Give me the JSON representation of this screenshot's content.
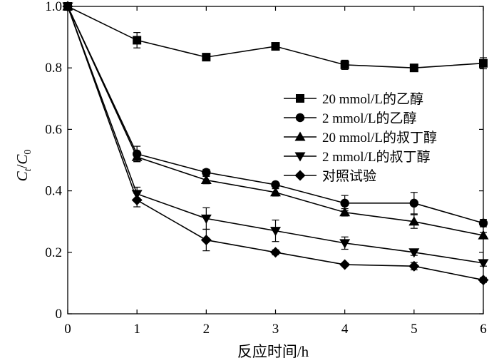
{
  "chart_data": {
    "type": "line",
    "xlabel": "反应时间/h",
    "ylabel": {
      "main": "C",
      "sub_t": "t",
      "slash": "/",
      "main2": "C",
      "sub_0": "0"
    },
    "xlim": [
      0,
      6
    ],
    "ylim": [
      0,
      1.0
    ],
    "x_ticks": [
      0,
      1,
      2,
      3,
      4,
      5,
      6
    ],
    "x_tick_labels": [
      "0",
      "1",
      "2",
      "3",
      "4",
      "5",
      "6"
    ],
    "y_ticks": [
      0,
      0.2,
      0.4,
      0.6,
      0.8,
      1.0
    ],
    "y_tick_labels": [
      "0",
      "0.2",
      "0.4",
      "0.6",
      "0.8",
      "1.0"
    ],
    "grid": false,
    "legend_position": "right-center",
    "x": [
      0,
      1,
      2,
      3,
      4,
      5,
      6
    ],
    "series": [
      {
        "name": "20 mmol/L的乙醇",
        "marker": "square",
        "values": [
          1.0,
          0.89,
          0.835,
          0.87,
          0.81,
          0.8,
          0.815
        ],
        "errors": [
          0.005,
          0.025,
          0.008,
          0.006,
          0.015,
          0.008,
          0.018
        ]
      },
      {
        "name": "2 mmol/L的乙醇",
        "marker": "circle",
        "values": [
          1.0,
          0.52,
          0.46,
          0.42,
          0.36,
          0.36,
          0.295
        ],
        "errors": [
          0.005,
          0.025,
          0.01,
          0.008,
          0.025,
          0.035,
          0.012
        ]
      },
      {
        "name": "20 mmol/L的叔丁醇",
        "marker": "triangle-up",
        "values": [
          1.0,
          0.51,
          0.435,
          0.395,
          0.33,
          0.3,
          0.255
        ],
        "errors": [
          0.005,
          0.015,
          0.012,
          0.012,
          0.012,
          0.022,
          0.01
        ]
      },
      {
        "name": "2 mmol/L的叔丁醇",
        "marker": "triangle-down",
        "values": [
          1.0,
          0.39,
          0.31,
          0.27,
          0.23,
          0.2,
          0.165
        ],
        "errors": [
          0.005,
          0.022,
          0.035,
          0.035,
          0.02,
          0.01,
          0.01
        ]
      },
      {
        "name": "对照试验",
        "marker": "diamond",
        "values": [
          1.0,
          0.37,
          0.24,
          0.2,
          0.16,
          0.155,
          0.11
        ],
        "errors": [
          0.005,
          0.022,
          0.035,
          0.008,
          0.006,
          0.012,
          0.008
        ]
      }
    ]
  }
}
